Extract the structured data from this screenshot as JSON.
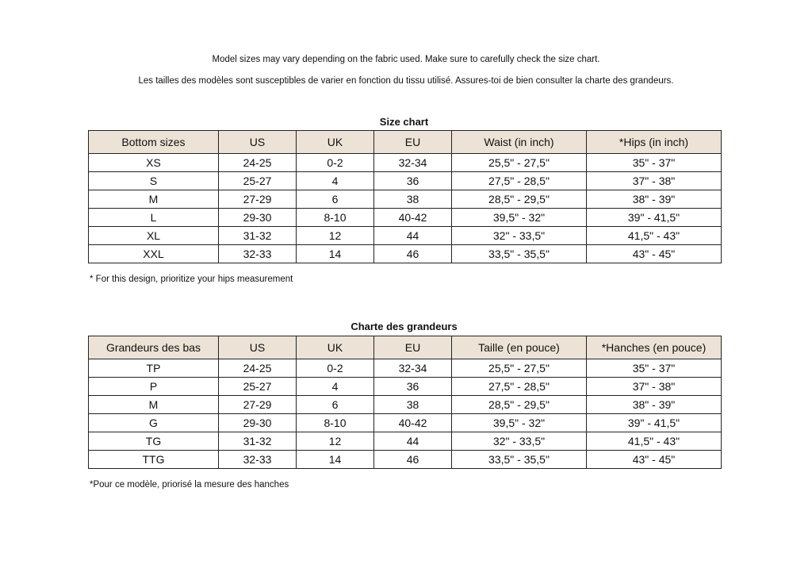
{
  "notes": {
    "en": "Model sizes may vary depending on the fabric used. Make sure to carefully check the size chart.",
    "fr": "Les tailles des modèles sont susceptibles de varier en fonction du tissu utilisé. Assures-toi de bien consulter la charte des grandeurs."
  },
  "tables": [
    {
      "title": "Size chart",
      "headers": [
        "Bottom sizes",
        "US",
        "UK",
        "EU",
        "Waist (in inch)",
        "*Hips (in inch)"
      ],
      "rows": [
        [
          "XS",
          "24-25",
          "0-2",
          "32-34",
          "25,5\" - 27,5\"",
          "35\" - 37\""
        ],
        [
          "S",
          "25-27",
          "4",
          "36",
          "27,5\" - 28,5\"",
          "37\" - 38\""
        ],
        [
          "M",
          "27-29",
          "6",
          "38",
          "28,5\" - 29,5\"",
          "38\" - 39\""
        ],
        [
          "L",
          "29-30",
          "8-10",
          "40-42",
          "39,5\" - 32\"",
          "39\" - 41,5\""
        ],
        [
          "XL",
          "31-32",
          "12",
          "44",
          "32\" - 33,5\"",
          "41,5\" - 43\""
        ],
        [
          "XXL",
          "32-33",
          "14",
          "46",
          "33,5\" - 35,5\"",
          "43\" - 45\""
        ]
      ],
      "footnote": "* For this design, prioritize your hips measurement"
    },
    {
      "title": "Charte des grandeurs",
      "headers": [
        "Grandeurs des bas",
        "US",
        "UK",
        "EU",
        "Taille (en pouce)",
        "*Hanches (en pouce)"
      ],
      "rows": [
        [
          "TP",
          "24-25",
          "0-2",
          "32-34",
          "25,5\" - 27,5\"",
          "35\" - 37\""
        ],
        [
          "P",
          "25-27",
          "4",
          "36",
          "27,5\" - 28,5\"",
          "37\" - 38\""
        ],
        [
          "M",
          "27-29",
          "6",
          "38",
          "28,5\" - 29,5\"",
          "38\" - 39\""
        ],
        [
          "G",
          "29-30",
          "8-10",
          "40-42",
          "39,5\" - 32\"",
          "39\" - 41,5\""
        ],
        [
          "TG",
          "31-32",
          "12",
          "44",
          "32\" - 33,5\"",
          "41,5\" - 43\""
        ],
        [
          "TTG",
          "32-33",
          "14",
          "46",
          "33,5\" - 35,5\"",
          "43\" - 45\""
        ]
      ],
      "footnote": "*Pour ce modèle, priorisé la mesure des hanches"
    }
  ],
  "colors": {
    "header_bg": "#ece3d6"
  }
}
